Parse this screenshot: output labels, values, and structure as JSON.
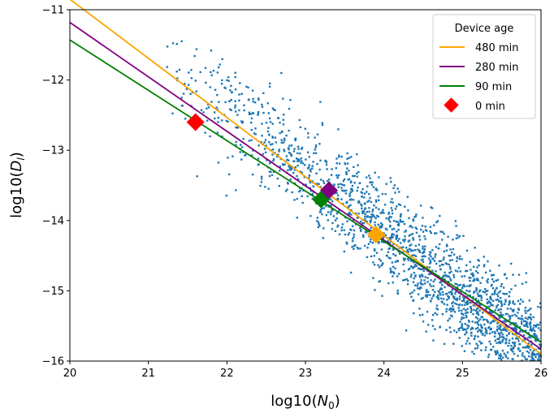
{
  "chart_data": {
    "type": "scatter",
    "xlabel": "log10(N_0)",
    "ylabel": "log10(D_l)",
    "xlim": [
      20,
      26
    ],
    "ylim": [
      -16,
      -11
    ],
    "xticks": [
      "20",
      "21",
      "22",
      "23",
      "24",
      "25",
      "26"
    ],
    "yticks": [
      "−11",
      "−12",
      "−13",
      "−14",
      "−15",
      "−16"
    ],
    "grid": false,
    "legend": {
      "title": "Device age",
      "placement": "top-right",
      "entries": [
        {
          "label": "480 min",
          "kind": "line",
          "color": "#ffa500"
        },
        {
          "label": "280 min",
          "kind": "line",
          "color": "#800080"
        },
        {
          "label": "90 min",
          "kind": "line",
          "color": "#008000"
        },
        {
          "label": "0 min",
          "kind": "marker",
          "color": "#ff0000"
        }
      ]
    },
    "scatter_cloud": {
      "color": "#1f77b4",
      "approx_count": 1900,
      "x_range": [
        21.1,
        26.0
      ],
      "trend_slope": -0.89,
      "trend_intercept": 7.16,
      "spread_sd": 0.37
    },
    "lines": [
      {
        "name": "480 min",
        "color": "#ffa500",
        "x": [
          20,
          26
        ],
        "y": [
          -10.85,
          -15.9
        ]
      },
      {
        "name": "280 min",
        "color": "#800080",
        "x": [
          20,
          26
        ],
        "y": [
          -11.18,
          -15.83
        ]
      },
      {
        "name": "90 min",
        "color": "#008000",
        "x": [
          20,
          26
        ],
        "y": [
          -11.43,
          -15.73
        ]
      }
    ],
    "markers": [
      {
        "name": "0 min",
        "color": "#ff0000",
        "x": 21.6,
        "y": -12.6
      },
      {
        "name": "90 min",
        "color": "#008000",
        "x": 23.2,
        "y": -13.7
      },
      {
        "name": "280 min",
        "color": "#800080",
        "x": 23.3,
        "y": -13.57
      },
      {
        "name": "480 min",
        "color": "#ffa500",
        "x": 23.9,
        "y": -14.2
      }
    ]
  }
}
